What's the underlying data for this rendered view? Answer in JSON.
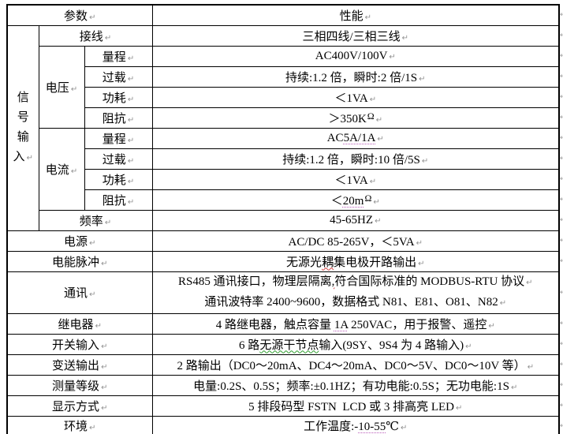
{
  "table": {
    "header": {
      "param_label": "参数",
      "perf_label": "性能"
    },
    "signal_input": {
      "group_label": "信号输入",
      "wiring": {
        "label": "接线",
        "parts": [
          {
            "t": "三相四线/三相三线"
          }
        ]
      },
      "voltage": {
        "label": "电压",
        "rows": [
          {
            "label": "量程",
            "parts": [
              {
                "t": "AC400V/100V"
              }
            ]
          },
          {
            "label": "过载",
            "parts": [
              {
                "t": "持续:1.2 倍，瞬时:2 倍/1S"
              }
            ]
          },
          {
            "label": "功耗",
            "parts": [
              {
                "t": "＜1VA"
              }
            ]
          },
          {
            "label": "阻抗",
            "parts": [
              {
                "t": "＞350K"
              },
              {
                "t": "Ω",
                "sup": true
              }
            ]
          }
        ]
      },
      "current": {
        "label": "电流",
        "rows": [
          {
            "label": "量程",
            "parts": [
              {
                "t": "AC"
              },
              {
                "t": "5A/1A",
                "u": "dot"
              }
            ]
          },
          {
            "label": "过载",
            "parts": [
              {
                "t": "持续:1.2 倍，瞬时:10 倍/5S"
              }
            ]
          },
          {
            "label": "功耗",
            "parts": [
              {
                "t": "＜1VA"
              }
            ]
          },
          {
            "label": "阻抗",
            "parts": [
              {
                "t": "＜"
              },
              {
                "t": "20m",
                "u": "dot"
              },
              {
                "t": "Ω",
                "sup": true
              }
            ]
          }
        ]
      },
      "frequency": {
        "label": "频率",
        "parts": [
          {
            "t": "45-65HZ"
          }
        ]
      }
    },
    "simple_rows": [
      {
        "label": "电源",
        "parts": [
          {
            "t": "AC/DC 85-265V，＜5VA"
          }
        ]
      },
      {
        "label": "电能脉冲",
        "parts": [
          {
            "t": "无源光"
          },
          {
            "t": "耦",
            "u": "wavy-red"
          },
          {
            "t": "集电极开路输出"
          }
        ]
      },
      {
        "label": "通讯",
        "lines": [
          [
            {
              "t": "RS485 通讯接口，物理层隔离"
            },
            {
              "t": ",",
              "u": "wavy-red"
            },
            {
              "t": "符合国际标准的 MODBUS-RTU 协议"
            }
          ],
          [
            {
              "t": "通讯波特率 2400~9600，数据格式 N81、E81、O81、N82"
            }
          ]
        ]
      },
      {
        "label": "继电器",
        "parts": [
          {
            "t": "4 路继电器，触点容量 "
          },
          {
            "t": "1A",
            "u": "dot"
          },
          {
            "t": " 250VAC，用于报警、遥控"
          }
        ]
      },
      {
        "label": "开关输入",
        "parts": [
          {
            "t": "6 路"
          },
          {
            "t": "无源干节点",
            "u": "wavy"
          },
          {
            "t": "输入(9SY、9S4 为 4 路输入)"
          }
        ]
      },
      {
        "label": "变送输出",
        "parts": [
          {
            "t": "2 路输出（DC0～20mA、DC4～20mA、DC0～5V、DC0～10V 等）"
          }
        ]
      },
      {
        "label": "测量等级",
        "parts": [
          {
            "t": "电量:0.2S、0.5S；频率:±0.1HZ；有功电能:0.5S；无功电能:1S"
          }
        ]
      },
      {
        "label": "显示方式",
        "parts": [
          {
            "t": "5 排段码型 FSTN  LCD 或 3 排高亮 LED"
          }
        ]
      },
      {
        "label": "环境",
        "parts": [
          {
            "t": "工作温度:-"
          },
          {
            "t": "10-55",
            "u": "dot"
          },
          {
            "t": "℃"
          }
        ]
      }
    ]
  }
}
